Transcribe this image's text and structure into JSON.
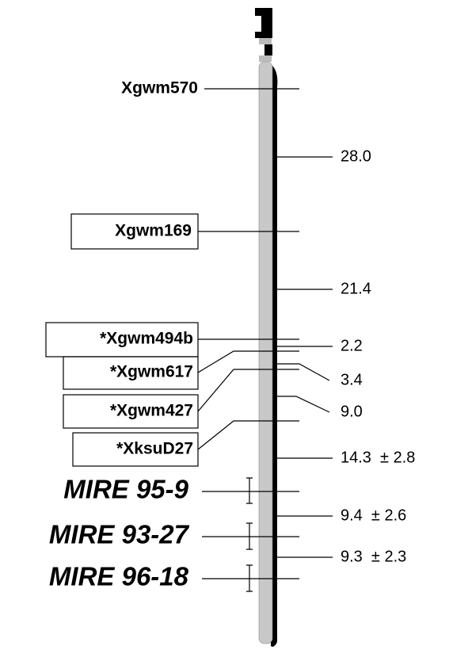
{
  "markers": [
    {
      "label": "Xgwm570"
    },
    {
      "label": "Xgwm169"
    },
    {
      "label": "*Xgwm494b"
    },
    {
      "label": "*Xgwm617"
    },
    {
      "label": "*Xgwm427"
    },
    {
      "label": "*XksuD27"
    },
    {
      "label": "MIRE 95-9"
    },
    {
      "label": "MIRE 93-27"
    },
    {
      "label": "MIRE 96-18"
    }
  ],
  "distances": [
    "28.0",
    "21.4",
    "2.2",
    "3.4",
    "9.0",
    "14.3  ± 2.8",
    "9.4  ± 2.6",
    "9.3  ± 2.3"
  ]
}
